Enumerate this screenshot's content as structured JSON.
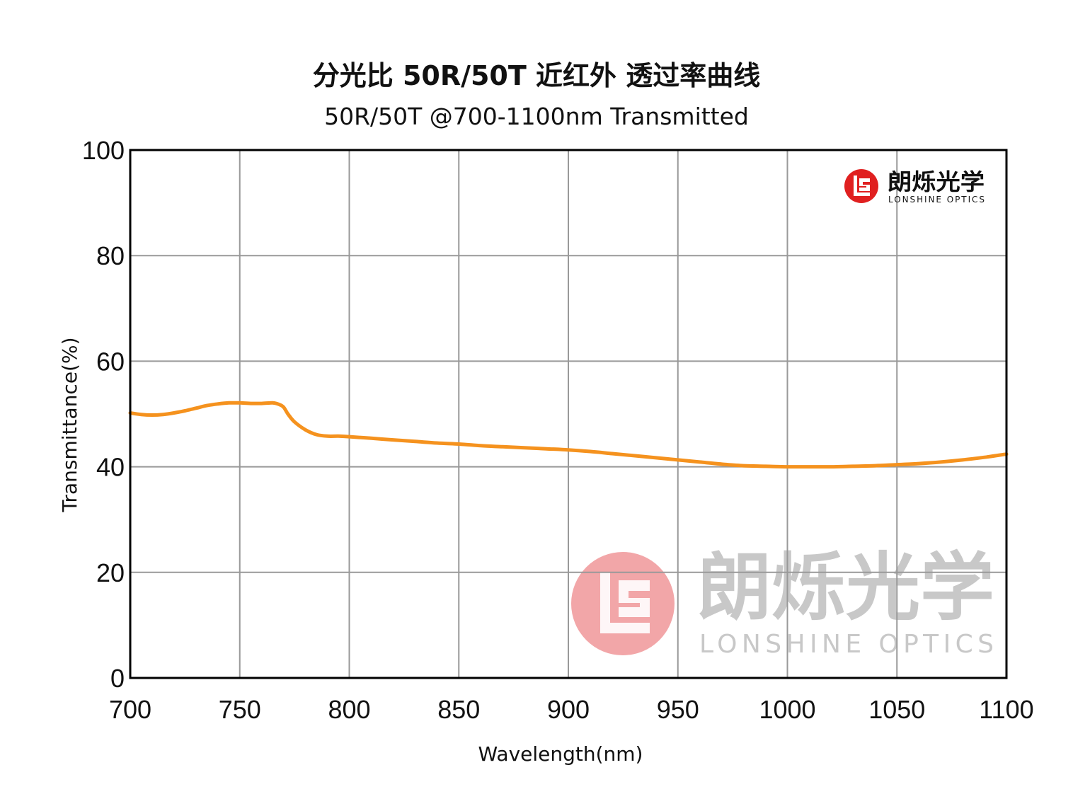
{
  "chart_data": {
    "type": "line",
    "title": "分光比 50R/50T 近红外 透过率曲线",
    "subtitle": "50R/50T @700-1100nm  Transmitted",
    "xlabel": "Wavelength(nm)",
    "ylabel": "Transmittance(%)",
    "xlim": [
      700,
      1100
    ],
    "ylim": [
      0,
      100
    ],
    "xticks": [
      700,
      750,
      800,
      850,
      900,
      950,
      1000,
      1050,
      1100
    ],
    "yticks": [
      0,
      20,
      40,
      60,
      80,
      100
    ],
    "grid": true,
    "series": [
      {
        "color": "#f5921e",
        "x": [
          700,
          705,
          710,
          715,
          720,
          725,
          730,
          735,
          740,
          745,
          750,
          755,
          760,
          765,
          768,
          770,
          772,
          775,
          780,
          785,
          790,
          795,
          800,
          810,
          820,
          830,
          840,
          850,
          860,
          870,
          880,
          890,
          900,
          910,
          920,
          930,
          940,
          950,
          960,
          970,
          980,
          990,
          1000,
          1010,
          1020,
          1030,
          1040,
          1050,
          1060,
          1070,
          1080,
          1090,
          1100
        ],
        "y": [
          50.2,
          49.9,
          49.8,
          49.9,
          50.2,
          50.6,
          51.1,
          51.6,
          51.9,
          52.1,
          52.1,
          52.0,
          52.0,
          52.1,
          51.8,
          51.3,
          50.0,
          48.5,
          47.0,
          46.1,
          45.8,
          45.8,
          45.7,
          45.4,
          45.1,
          44.8,
          44.5,
          44.3,
          44.0,
          43.8,
          43.6,
          43.4,
          43.2,
          42.9,
          42.5,
          42.1,
          41.7,
          41.3,
          40.9,
          40.5,
          40.2,
          40.1,
          40.0,
          40.0,
          40.0,
          40.1,
          40.2,
          40.4,
          40.6,
          40.9,
          41.3,
          41.8,
          42.4
        ]
      }
    ]
  },
  "logo": {
    "cn": "朗烁光学",
    "en": "LONSHINE OPTICS",
    "red": "#e02020"
  },
  "watermark": {
    "cn": "朗烁光学",
    "en": "LONSHINE OPTICS",
    "red": "#f2a6a8",
    "gray": "#c8c8c8"
  },
  "colors": {
    "grid": "#999999",
    "frame": "#000000"
  }
}
